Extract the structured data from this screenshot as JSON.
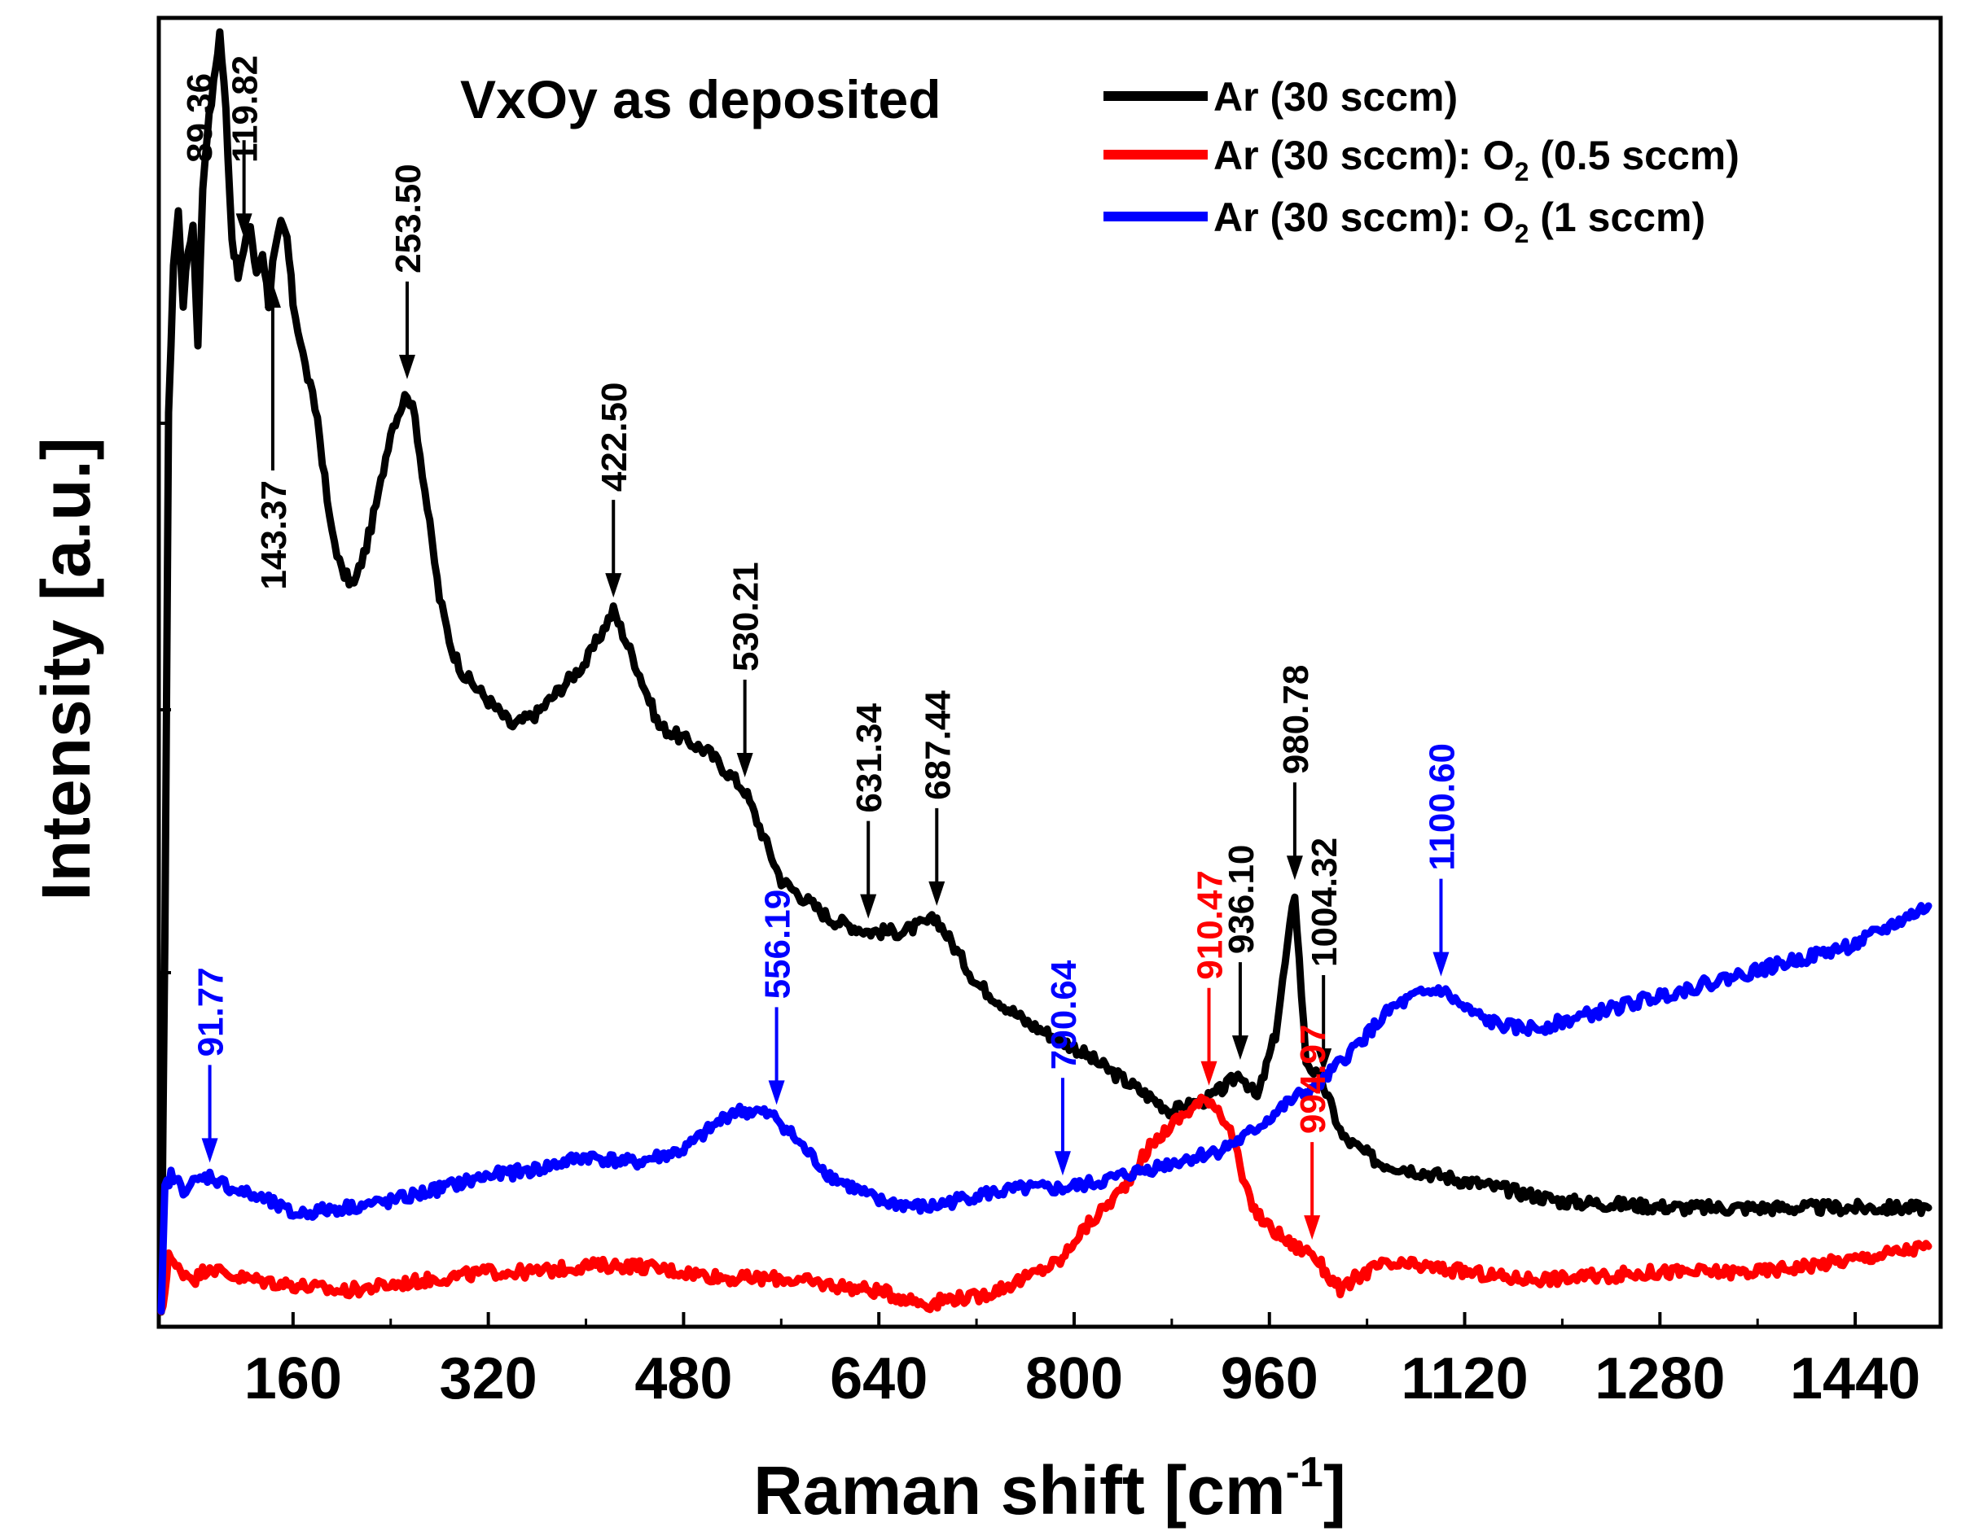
{
  "chart_data": {
    "type": "line",
    "title": "VxOy as deposited",
    "xlabel": "Raman shift [cm",
    "xlabel_sup": "-1",
    "xlabel_end": "]",
    "ylabel": "Intensity  [a.u.]",
    "xlim": [
      50,
      1510
    ],
    "ylim": [
      0,
      1000
    ],
    "xticks": [
      160,
      320,
      480,
      640,
      800,
      960,
      1120,
      1280,
      1440
    ],
    "xtick_labels": [
      "160",
      "320",
      "480",
      "640",
      "800",
      "960",
      "1120",
      "1280",
      "1440"
    ],
    "colors": {
      "black": "#000000",
      "red": "#ff0000",
      "blue": "#0000ff"
    },
    "legend": [
      {
        "name": "Ar (30 sccm)",
        "color": "#000000",
        "text": "Ar (30 sccm)"
      },
      {
        "name": "Ar (30 sccm): O2 (0.5 sccm)",
        "color": "#ff0000",
        "text": "Ar (30 sccm): O",
        "sub": "2",
        "tail": " (0.5 sccm)"
      },
      {
        "name": "Ar (30 sccm): O2 (1 sccm)",
        "color": "#0000ff",
        "text": "Ar (30 sccm): O",
        "sub": "2",
        "tail": " (1 sccm)"
      }
    ],
    "series": [
      {
        "name": "Ar (30 sccm)",
        "color": "#000000",
        "x": [
          52,
          55,
          58,
          62,
          66,
          70,
          74,
          78,
          82,
          86,
          89.36,
          95,
          100,
          105,
          110,
          115,
          119.82,
          125,
          130,
          135,
          140,
          143.37,
          150,
          155,
          160,
          170,
          180,
          190,
          200,
          210,
          220,
          230,
          240,
          253.5,
          260,
          270,
          280,
          290,
          300,
          320,
          340,
          360,
          380,
          400,
          422.5,
          440,
          460,
          480,
          500,
          530.21,
          560,
          600,
          631.34,
          660,
          687.44,
          720,
          760,
          800,
          840,
          880,
          910,
          925,
          936.1,
          950,
          965,
          980.78,
          990,
          1004.32,
          1020,
          1050,
          1100,
          1150,
          1200,
          1300,
          1400,
          1500
        ],
        "values": [
          0,
          300,
          700,
          820,
          860,
          790,
          830,
          850,
          760,
          880,
          920,
          960,
          1000,
          940,
          840,
          810,
          830,
          850,
          810,
          830,
          790,
          820,
          850,
          840,
          790,
          740,
          700,
          620,
          580,
          570,
          600,
          640,
          690,
          720,
          700,
          630,
          560,
          520,
          500,
          480,
          460,
          470,
          490,
          510,
          550,
          510,
          460,
          450,
          440,
          410,
          340,
          310,
          300,
          300,
          310,
          260,
          230,
          210,
          185,
          160,
          170,
          180,
          190,
          170,
          220,
          330,
          200,
          180,
          140,
          120,
          110,
          100,
          90,
          85,
          85,
          85
        ]
      },
      {
        "name": "Ar (30 sccm): O2 (0.5 sccm)",
        "color": "#ff0000",
        "x": [
          52,
          55,
          58,
          62,
          70,
          80,
          91.77,
          100,
          120,
          160,
          200,
          240,
          280,
          320,
          360,
          400,
          440,
          480,
          520,
          560,
          600,
          640,
          680,
          700,
          720,
          760,
          790.64,
          800,
          820,
          840,
          860,
          880,
          900,
          910.47,
          920,
          930,
          940,
          950,
          960,
          980,
          994.97,
          1010,
          1020,
          1030,
          1050,
          1080,
          1120,
          1160,
          1200,
          1280,
          1360,
          1440,
          1500
        ],
        "values": [
          0,
          20,
          50,
          40,
          35,
          30,
          40,
          35,
          30,
          25,
          20,
          25,
          30,
          35,
          35,
          40,
          40,
          35,
          30,
          30,
          25,
          20,
          10,
          15,
          15,
          30,
          45,
          60,
          80,
          100,
          130,
          150,
          165,
          170,
          160,
          140,
          100,
          80,
          70,
          55,
          50,
          30,
          20,
          30,
          40,
          40,
          35,
          30,
          30,
          35,
          35,
          45,
          55
        ]
      },
      {
        "name": "Ar (30 sccm): O2 (1 sccm)",
        "color": "#0000ff",
        "x": [
          52,
          55,
          60,
          70,
          80,
          91.77,
          110,
          140,
          160,
          200,
          240,
          280,
          320,
          360,
          400,
          440,
          480,
          520,
          540,
          556.19,
          580,
          600,
          640,
          680,
          700,
          720,
          760,
          790.64,
          820,
          840,
          860,
          880,
          900,
          920,
          940,
          960,
          980,
          1000,
          1020,
          1040,
          1060,
          1080,
          1100.6,
          1120,
          1140,
          1160,
          1180,
          1200,
          1240,
          1280,
          1320,
          1360,
          1400,
          1440,
          1480,
          1500
        ],
        "values": [
          0,
          100,
          110,
          100,
          105,
          110,
          100,
          90,
          80,
          85,
          90,
          100,
          110,
          115,
          125,
          120,
          130,
          160,
          160,
          155,
          130,
          110,
          90,
          85,
          90,
          95,
          100,
          100,
          105,
          110,
          115,
          120,
          125,
          130,
          140,
          155,
          170,
          180,
          200,
          220,
          240,
          250,
          255,
          240,
          230,
          225,
          225,
          230,
          240,
          250,
          260,
          270,
          280,
          290,
          310,
          320
        ]
      }
    ],
    "annotations": [
      {
        "label": "89.36",
        "x": 89.36,
        "color": "#000000",
        "arrow": false
      },
      {
        "label": "119.82",
        "x": 119.82,
        "color": "#000000",
        "arrow": true,
        "dir": "down"
      },
      {
        "label": "253.50",
        "x": 253.5,
        "color": "#000000",
        "arrow": true,
        "dir": "down"
      },
      {
        "label": "143.37",
        "x": 143.37,
        "color": "#000000",
        "arrow": true,
        "dir": "up"
      },
      {
        "label": "422.50",
        "x": 422.5,
        "color": "#000000",
        "arrow": true,
        "dir": "down"
      },
      {
        "label": "530.21",
        "x": 530.21,
        "color": "#000000",
        "arrow": true,
        "dir": "down"
      },
      {
        "label": "631.34",
        "x": 631.34,
        "color": "#000000",
        "arrow": true,
        "dir": "down"
      },
      {
        "label": "687.44",
        "x": 687.44,
        "color": "#000000",
        "arrow": true,
        "dir": "down"
      },
      {
        "label": "936.10",
        "x": 936.1,
        "color": "#000000",
        "arrow": true,
        "dir": "down"
      },
      {
        "label": "980.78",
        "x": 980.78,
        "color": "#000000",
        "arrow": true,
        "dir": "down"
      },
      {
        "label": "1004.32",
        "x": 1004.32,
        "color": "#000000",
        "arrow": true,
        "dir": "down"
      },
      {
        "label": "91.77",
        "x": 91.77,
        "color": "#0000ff",
        "arrow": true,
        "dir": "down"
      },
      {
        "label": "556.19",
        "x": 556.19,
        "color": "#0000ff",
        "arrow": true,
        "dir": "down"
      },
      {
        "label": "790.64",
        "x": 790.64,
        "color": "#0000ff",
        "arrow": true,
        "dir": "down"
      },
      {
        "label": "1100.60",
        "x": 1100.6,
        "color": "#0000ff",
        "arrow": true,
        "dir": "down"
      },
      {
        "label": "910.47",
        "x": 910.47,
        "color": "#ff0000",
        "arrow": true,
        "dir": "down"
      },
      {
        "label": "994.97",
        "x": 994.97,
        "color": "#ff0000",
        "arrow": true,
        "dir": "down"
      }
    ]
  }
}
